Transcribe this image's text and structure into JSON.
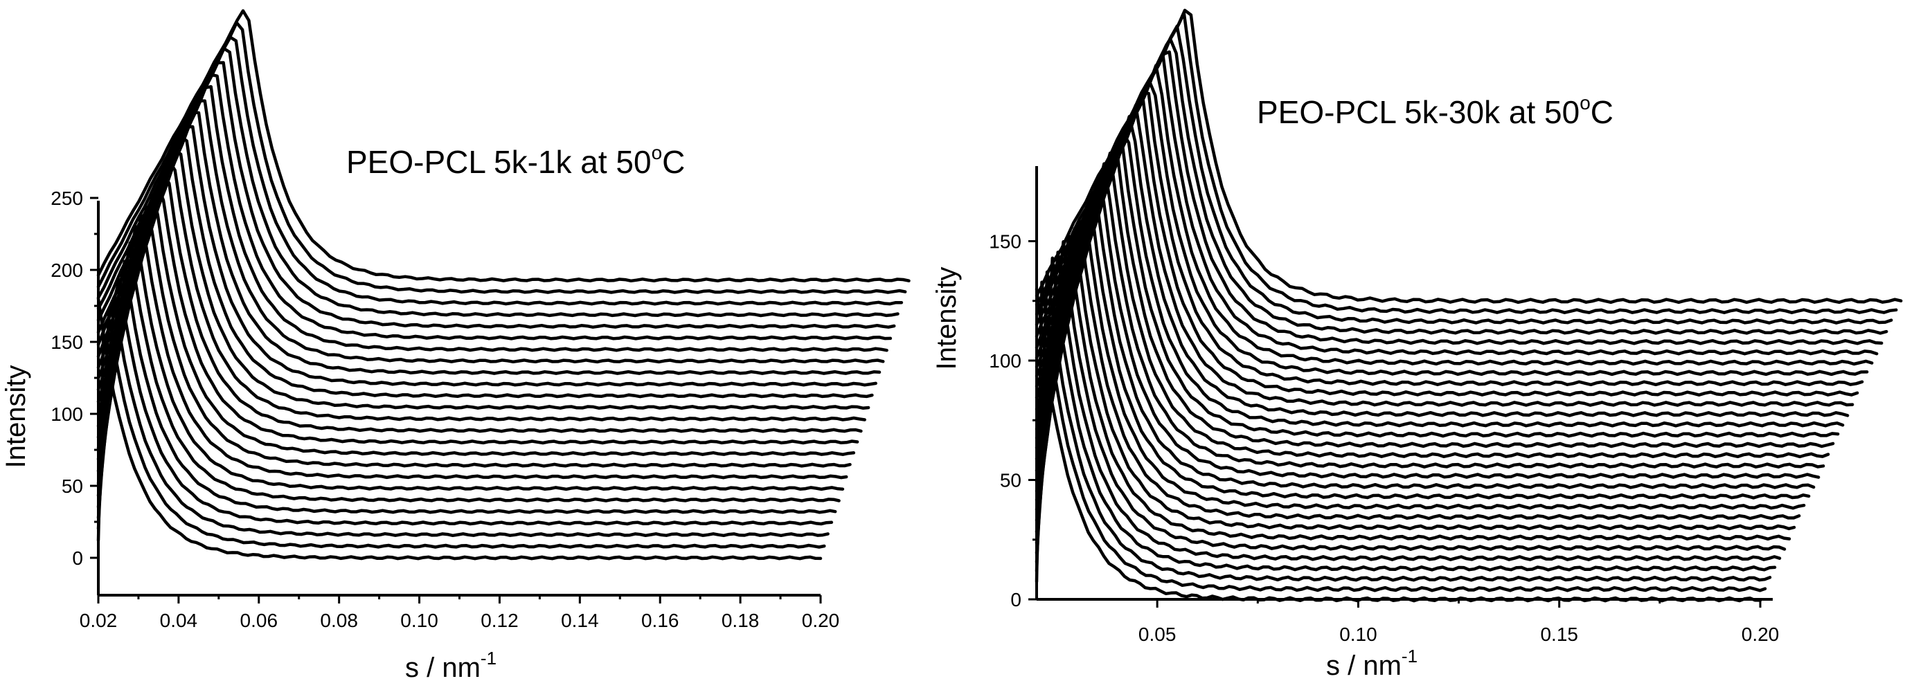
{
  "chart_data": [
    {
      "type": "line",
      "title": "PEO-PCL 5k-1k at 50",
      "title_super": "o",
      "title_suffix": "C",
      "xlabel": "s / nm",
      "xlabel_super": "-1",
      "ylabel": "Intensity",
      "xlim": [
        0.02,
        0.2
      ],
      "ylim": [
        -25,
        250
      ],
      "x_ticks": [
        "0.02",
        "0.04",
        "0.06",
        "0.08",
        "0.10",
        "0.12",
        "0.14",
        "0.16",
        "0.18",
        "0.20"
      ],
      "y_ticks": [
        "0",
        "50",
        "100",
        "150",
        "200",
        "250"
      ],
      "grid": false,
      "stack": {
        "n_curves": 25,
        "curve_shape": "peak then decay to flat baseline",
        "peak_max": {
          "first": 180,
          "last": 385
        },
        "baseline": {
          "first": 0,
          "last": 193
        },
        "peak_x": {
          "first": 0.02,
          "last": 0.057
        },
        "x_end": {
          "first": 0.2,
          "last": 0.222
        }
      }
    },
    {
      "type": "line",
      "title": "PEO-PCL 5k-30k at 50",
      "title_super": "o",
      "title_suffix": "C",
      "xlabel": "s / nm",
      "xlabel_super": "-1",
      "ylabel": "Intensity",
      "xlim": [
        0.02,
        0.2
      ],
      "ylim": [
        0,
        180
      ],
      "x_ticks": [
        "0.05",
        "0.10",
        "0.15",
        "0.20"
      ],
      "y_ticks": [
        "0",
        "50",
        "100",
        "150"
      ],
      "grid": false,
      "stack": {
        "n_curves": 30,
        "curve_shape": "peak then decay to flat baseline",
        "peak_max": {
          "first": 130,
          "last": 250
        },
        "baseline": {
          "first": 0,
          "last": 125
        },
        "peak_x": {
          "first": 0.02,
          "last": 0.058
        },
        "x_end": {
          "first": 0.2,
          "last": 0.235
        }
      }
    }
  ]
}
